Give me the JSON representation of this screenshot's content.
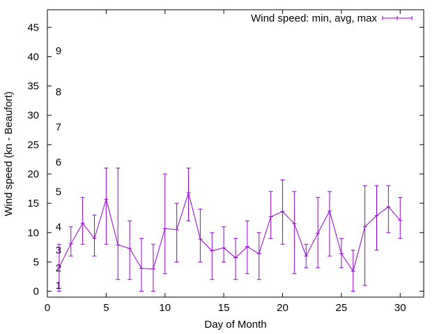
{
  "chart_data": {
    "type": "line",
    "xlabel": "Day of Month",
    "ylabel": "Wind speed (kn - Beaufort)",
    "xlim": [
      0,
      32
    ],
    "ylim": [
      -1,
      48
    ],
    "xticks": [
      0,
      5,
      10,
      15,
      20,
      25,
      30
    ],
    "yticks": [
      0,
      5,
      10,
      15,
      20,
      25,
      30,
      35,
      40,
      45
    ],
    "grid": false,
    "legend": {
      "placement": "top-right",
      "label": "Wind speed: min, avg, max"
    },
    "series": [
      {
        "name": "Wind speed: min, avg, max",
        "color": "#9400d3",
        "x": [
          1,
          2,
          3,
          4,
          5,
          6,
          7,
          8,
          9,
          10,
          11,
          12,
          13,
          14,
          15,
          16,
          17,
          18,
          19,
          20,
          21,
          22,
          23,
          24,
          25,
          26,
          27,
          28,
          29,
          30
        ],
        "min": [
          0,
          6,
          8,
          6,
          8,
          2,
          2,
          0,
          0,
          3,
          5,
          12,
          5,
          2,
          5,
          2,
          3,
          2,
          9,
          8,
          3,
          4,
          4,
          6,
          4,
          0,
          1,
          7,
          10,
          9
        ],
        "avg": [
          4.1,
          8.1,
          11.6,
          9.0,
          15.7,
          7.9,
          7.3,
          3.9,
          3.8,
          10.7,
          10.5,
          16.8,
          8.9,
          6.9,
          7.4,
          5.7,
          7.6,
          6.4,
          12.7,
          13.6,
          11.5,
          6.0,
          9.9,
          13.7,
          6.4,
          3.4,
          11.0,
          12.9,
          14.4,
          12.1
        ],
        "max": [
          8,
          11,
          16,
          13,
          21,
          21,
          12,
          9,
          8,
          20,
          15,
          21,
          14,
          10,
          11,
          9,
          12,
          10,
          17,
          19,
          17,
          8,
          16,
          17,
          9,
          7,
          18,
          18,
          18,
          16
        ]
      }
    ],
    "annotations": [
      {
        "text": "1",
        "x": 1,
        "y": 1
      },
      {
        "text": "2",
        "x": 1,
        "y": 4
      },
      {
        "text": "3",
        "x": 1,
        "y": 7
      },
      {
        "text": "4",
        "x": 1,
        "y": 11
      },
      {
        "text": "5",
        "x": 1,
        "y": 17
      },
      {
        "text": "6",
        "x": 1,
        "y": 22
      },
      {
        "text": "7",
        "x": 1,
        "y": 28
      },
      {
        "text": "8",
        "x": 1,
        "y": 34
      },
      {
        "text": "9",
        "x": 1,
        "y": 41
      }
    ]
  }
}
